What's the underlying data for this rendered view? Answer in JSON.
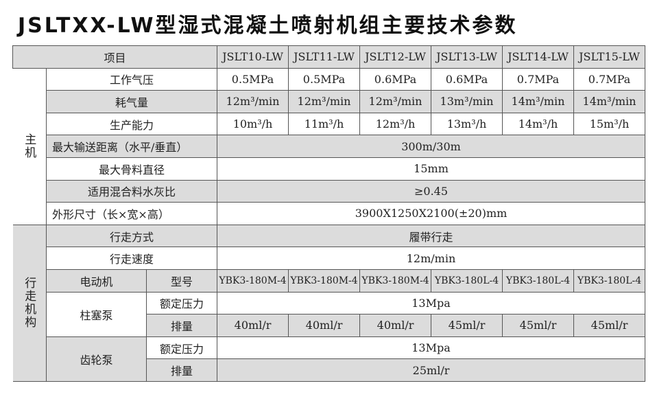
{
  "title": "JSLTXX-LW型湿式混凝土喷射机组主要技术参数",
  "table": {
    "header": {
      "label": "项目",
      "models": [
        "JSLT10-LW",
        "JSLT11-LW",
        "JSLT12-LW",
        "JSLT13-LW",
        "JSLT14-LW",
        "JSLT15-LW"
      ]
    },
    "groups": [
      "主机",
      "行走机构"
    ],
    "rows": [
      {
        "label": "工作气压",
        "values": [
          "0.5MPa",
          "0.5MPa",
          "0.6MPa",
          "0.6MPa",
          "0.7MPa",
          "0.7MPa"
        ]
      },
      {
        "label": "耗气量",
        "values": [
          "12m³/min",
          "12m³/min",
          "12m³/min",
          "13m³/min",
          "14m³/min",
          "14m³/min"
        ]
      },
      {
        "label": "生产能力",
        "values": [
          "10m³/h",
          "11m³/h",
          "12m³/h",
          "13m³/h",
          "14m³/h",
          "15m³/h"
        ]
      },
      {
        "label": "最大输送距离（水平/垂直）",
        "value": "300m/30m"
      },
      {
        "label": "最大骨料直径",
        "value": "15mm"
      },
      {
        "label": "适用混合料水灰比",
        "value": "≥0.45"
      },
      {
        "label": "外形尺寸（长×宽×高）",
        "value": "3900X1250X2100(±20)mm"
      },
      {
        "label": "行走方式",
        "value": "履带行走"
      },
      {
        "label": "行走速度",
        "value": "12m/min"
      },
      {
        "label": "电动机",
        "sublabel": "型号",
        "values": [
          "YBK3-180M-4",
          "YBK3-180M-4",
          "YBK3-180M-4",
          "YBK3-180L-4",
          "YBK3-180L-4",
          "YBK3-180L-4"
        ]
      },
      {
        "label": "柱塞泵",
        "sublabel": "额定压力",
        "value": "13Mpa"
      },
      {
        "sublabel": "排量",
        "values": [
          "40ml/r",
          "40ml/r",
          "40ml/r",
          "45ml/r",
          "45ml/r",
          "45ml/r"
        ]
      },
      {
        "label": "齿轮泵",
        "sublabel": "额定压力",
        "value": "13Mpa"
      },
      {
        "sublabel": "排量",
        "value": "25ml/r"
      }
    ]
  }
}
